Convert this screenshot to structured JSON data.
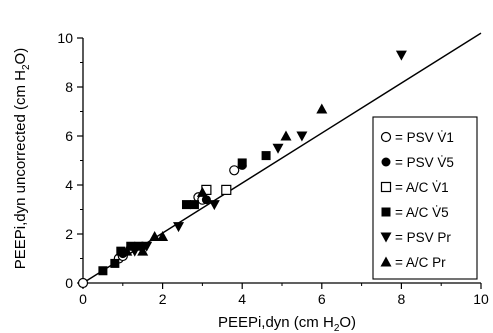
{
  "chart_data": {
    "type": "scatter",
    "xlabel_main": "PEEPi,dyn (cm H",
    "xlabel_sub": "2",
    "xlabel_end": "O)",
    "ylabel_main": "PEEPi,dyn uncorrected (cm H",
    "ylabel_sub": "2",
    "ylabel_end": "O)",
    "xlim": [
      0,
      10
    ],
    "ylim": [
      0,
      10
    ],
    "x_ticks": [
      "0",
      "2",
      "4",
      "6",
      "8",
      "10"
    ],
    "y_ticks": [
      "0",
      "2",
      "4",
      "6",
      "8",
      "10"
    ],
    "grid": false,
    "legend_position": "right",
    "regression_line": {
      "from": [
        0,
        0
      ],
      "to": [
        10,
        10.2
      ]
    },
    "series": [
      {
        "name": "= PSV V̇1",
        "marker": "circle-open",
        "points": [
          [
            0,
            0
          ],
          [
            0.9,
            1.0
          ],
          [
            1.0,
            1.1
          ],
          [
            2.9,
            3.5
          ],
          [
            3.0,
            3.4
          ],
          [
            3.8,
            4.6
          ]
        ]
      },
      {
        "name": "= PSV V̇5",
        "marker": "circle-filled",
        "points": [
          [
            1.0,
            1.2
          ],
          [
            1.5,
            1.5
          ],
          [
            3.1,
            3.4
          ],
          [
            4.0,
            4.8
          ]
        ]
      },
      {
        "name": "= A/C V̇1",
        "marker": "square-open",
        "points": [
          [
            3.1,
            3.8
          ],
          [
            3.6,
            3.8
          ]
        ]
      },
      {
        "name": "= A/C V̇5",
        "marker": "square-filled",
        "points": [
          [
            0.5,
            0.5
          ],
          [
            0.8,
            0.8
          ],
          [
            0.95,
            1.3
          ],
          [
            1.2,
            1.5
          ],
          [
            1.4,
            1.5
          ],
          [
            2.6,
            3.2
          ],
          [
            2.8,
            3.2
          ],
          [
            4.0,
            4.9
          ],
          [
            4.6,
            5.2
          ]
        ]
      },
      {
        "name": "= PSV Pr",
        "marker": "triangle-down",
        "points": [
          [
            1.3,
            1.3
          ],
          [
            1.6,
            1.5
          ],
          [
            2.4,
            2.3
          ],
          [
            3.3,
            3.2
          ],
          [
            4.9,
            5.5
          ],
          [
            5.5,
            6.0
          ],
          [
            8.0,
            9.3
          ]
        ]
      },
      {
        "name": "= A/C Pr",
        "marker": "triangle-up",
        "points": [
          [
            1.1,
            1.3
          ],
          [
            1.5,
            1.3
          ],
          [
            1.8,
            1.9
          ],
          [
            2.0,
            1.9
          ],
          [
            3.0,
            3.7
          ],
          [
            5.1,
            6.0
          ],
          [
            6.0,
            7.1
          ]
        ]
      }
    ]
  }
}
